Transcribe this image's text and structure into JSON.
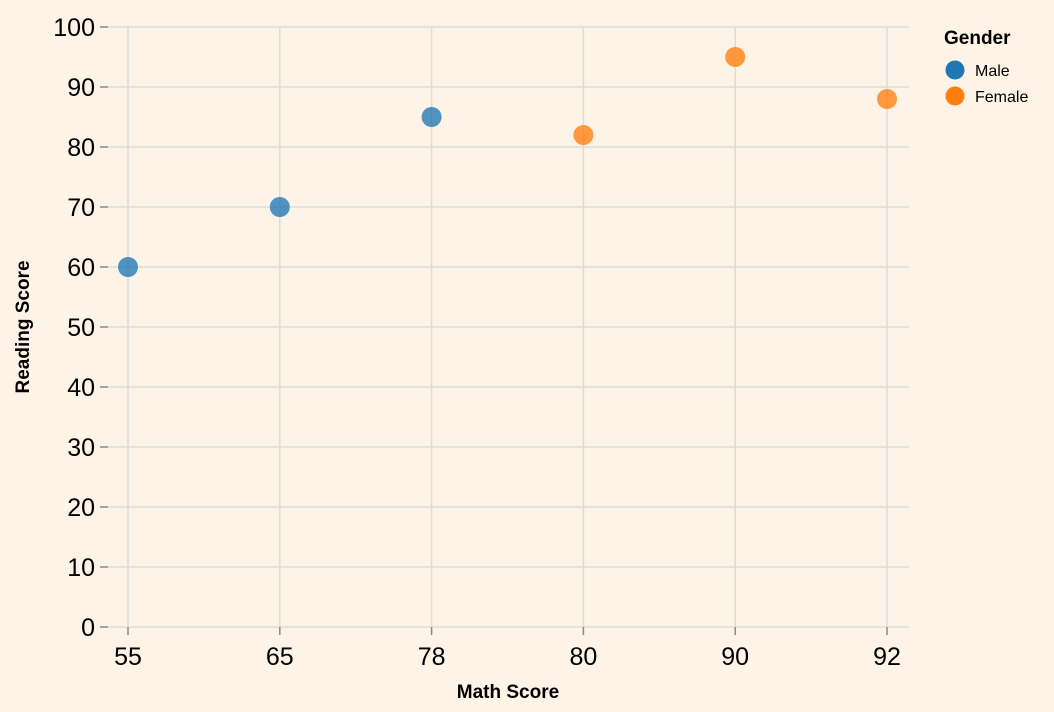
{
  "chart_data": {
    "type": "scatter",
    "title": "",
    "xlabel": "Math Score",
    "ylabel": "Reading Score",
    "x_type": "ordinal",
    "x_categories": [
      "55",
      "65",
      "78",
      "80",
      "90",
      "92"
    ],
    "ylim": [
      0,
      100
    ],
    "y_ticks": [
      "0",
      "10",
      "20",
      "30",
      "40",
      "50",
      "60",
      "70",
      "80",
      "90",
      "100"
    ],
    "grid": true,
    "legend": {
      "title": "Gender",
      "position": "top-right"
    },
    "series": [
      {
        "name": "Male",
        "color": "#1f77b4",
        "points": [
          {
            "x": "55",
            "y": 60
          },
          {
            "x": "65",
            "y": 70
          },
          {
            "x": "78",
            "y": 85
          }
        ]
      },
      {
        "name": "Female",
        "color": "#ff7f0e",
        "points": [
          {
            "x": "80",
            "y": 82
          },
          {
            "x": "90",
            "y": 95
          },
          {
            "x": "92",
            "y": 88
          }
        ]
      }
    ]
  }
}
